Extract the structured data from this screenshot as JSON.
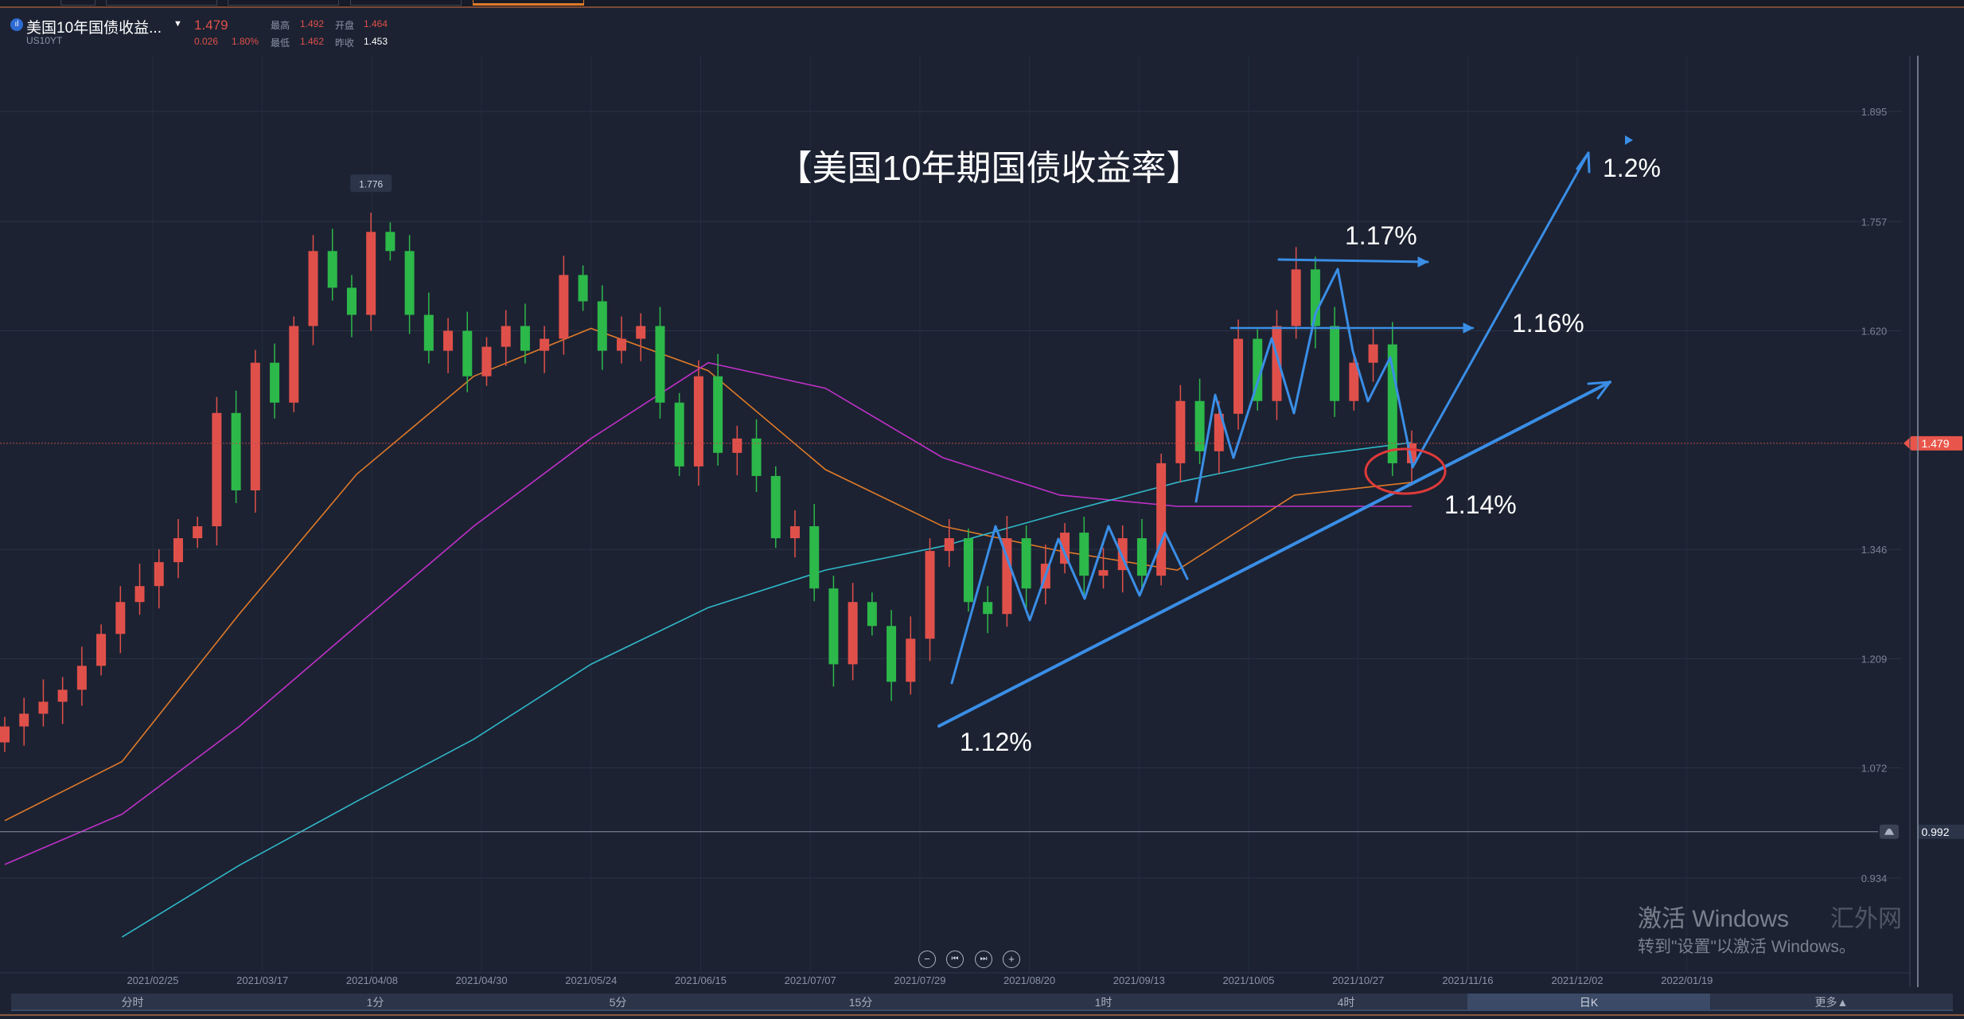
{
  "header": {
    "name": "美国10年国债收益...",
    "code": "US10YT",
    "price": "1.479",
    "change": "0.026",
    "change_pct": "1.80%",
    "high_label": "最高",
    "high": "1.492",
    "open_label": "开盘",
    "open": "1.464",
    "low_label": "最低",
    "low": "1.462",
    "prev_label": "昨收",
    "prev": "1.453"
  },
  "colors": {
    "background": "#1c2232",
    "up": "#e0504a",
    "down": "#2db84a",
    "ma1": "#e07a28",
    "ma2": "#c030c8",
    "ma3": "#30b8c8",
    "annotation": "#3a8ee6",
    "circle": "#e03a3a"
  },
  "chart_data": {
    "type": "candlestick",
    "title": "【美国10年期国债收益率】",
    "ylim": [
      0.88,
      1.93
    ],
    "y_ticks": [
      "1.895",
      "1.757",
      "1.620",
      "1.346",
      "1.209",
      "1.072",
      "0.934"
    ],
    "x_ticks": [
      "2021/02/25",
      "2021/03/17",
      "2021/04/08",
      "2021/04/30",
      "2021/05/24",
      "2021/06/15",
      "2021/07/07",
      "2021/07/29",
      "2021/08/20",
      "2021/09/13",
      "2021/10/05",
      "2021/10/27",
      "2021/11/16",
      "2021/12/02",
      "2022/01/19"
    ],
    "closes": [
      1.124,
      1.14,
      1.155,
      1.17,
      1.2,
      1.24,
      1.28,
      1.3,
      1.33,
      1.36,
      1.375,
      1.517,
      1.42,
      1.58,
      1.53,
      1.626,
      1.72,
      1.674,
      1.64,
      1.744,
      1.72,
      1.64,
      1.595,
      1.62,
      1.563,
      1.6,
      1.626,
      1.595,
      1.61,
      1.69,
      1.657,
      1.595,
      1.61,
      1.626,
      1.53,
      1.45,
      1.563,
      1.467,
      1.485,
      1.438,
      1.36,
      1.375,
      1.297,
      1.202,
      1.28,
      1.25,
      1.18,
      1.234,
      1.344,
      1.36,
      1.28,
      1.265,
      1.36,
      1.297,
      1.328,
      1.367,
      1.313,
      1.32,
      1.36,
      1.313,
      1.454,
      1.532,
      1.469,
      1.516,
      1.61,
      1.532,
      1.626,
      1.697,
      1.626,
      1.532,
      1.58,
      1.603,
      1.454,
      1.479
    ],
    "peak_label": "1.776",
    "current_price": "1.479",
    "alert_price": "0.992",
    "moving_averages": [
      {
        "color": "#e07a28",
        "values": [
          1.006,
          1.08,
          1.265,
          1.44,
          1.563,
          1.623,
          1.57,
          1.446,
          1.375,
          1.344,
          1.32,
          1.414,
          1.43
        ]
      },
      {
        "color": "#c030c8",
        "values": [
          0.951,
          1.014,
          1.124,
          1.25,
          1.375,
          1.485,
          1.58,
          1.548,
          1.461,
          1.414,
          1.4,
          1.4,
          1.4
        ]
      },
      {
        "color": "#30b8c8",
        "values": [
          null,
          0.86,
          0.95,
          1.03,
          1.108,
          1.202,
          1.273,
          1.32,
          1.35,
          1.391,
          1.43,
          1.461,
          1.48
        ]
      }
    ],
    "annotations": [
      "1.2%",
      "1.17%",
      "1.16%",
      "1.14%",
      "1.12%"
    ]
  },
  "controls": {
    "zoom_out": "−",
    "rewind": "⏮",
    "forward": "⏭",
    "zoom_in": "+"
  },
  "periods": [
    "分时",
    "1分",
    "5分",
    "15分",
    "1时",
    "4时",
    "日K",
    "更多▲"
  ],
  "watermark": {
    "line1": "激活 Windows",
    "line2": "转到\"设置\"以激活 Windows。",
    "site": "汇外网"
  }
}
